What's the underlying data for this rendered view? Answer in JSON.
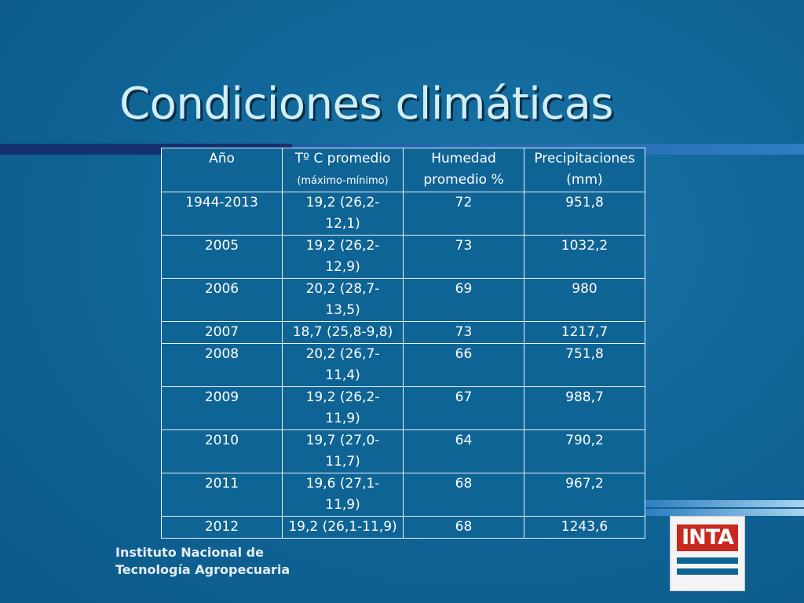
{
  "slide": {
    "title": "Condiciones climáticas"
  },
  "table": {
    "header": {
      "year": "Año",
      "temp": "Tº C promedio",
      "temp_sub": "(máximo-mínimo)",
      "humidity_1": "Humedad",
      "humidity_2": "promedio %",
      "precip_1": "Precipitaciones",
      "precip_2": "(mm)"
    },
    "rows": [
      {
        "year": "1944-2013",
        "temp_1": "19,2 (26,2-",
        "temp_2": "12,1)",
        "humidity": "72",
        "precip": "951,8"
      },
      {
        "year": "2005",
        "temp_1": "19,2 (26,2-",
        "temp_2": "12,9)",
        "humidity": "73",
        "precip": "1032,2"
      },
      {
        "year": "2006",
        "temp_1": "20,2 (28,7-",
        "temp_2": "13,5)",
        "humidity": "69",
        "precip": "980"
      },
      {
        "year": "2007",
        "temp_1": "18,7 (25,8-9,8)",
        "temp_2": "",
        "humidity": "73",
        "precip": "1217,7"
      },
      {
        "year": "2008",
        "temp_1": "20,2 (26,7-",
        "temp_2": "11,4)",
        "humidity": "66",
        "precip": "751,8"
      },
      {
        "year": "2009",
        "temp_1": "19,2 (26,2-",
        "temp_2": "11,9)",
        "humidity": "67",
        "precip": "988,7"
      },
      {
        "year": "2010",
        "temp_1": "19,7 (27,0-",
        "temp_2": "11,7)",
        "humidity": "64",
        "precip": "790,2"
      },
      {
        "year": "2011",
        "temp_1": "19,6 (27,1-",
        "temp_2": "11,9)",
        "humidity": "68",
        "precip": "967,2"
      },
      {
        "year": "2012",
        "temp_1": "19,2 (26,1-11,9)",
        "temp_2": "",
        "humidity": "68",
        "precip": "1243,6"
      }
    ]
  },
  "footer": {
    "institute_line1": "Instituto Nacional de",
    "institute_line2": "Tecnología Agropecuaria",
    "logo_text": "INTA"
  },
  "colors": {
    "background": "#0f6496",
    "title_text": "#cfeef6",
    "logo_red": "#c8281e"
  }
}
